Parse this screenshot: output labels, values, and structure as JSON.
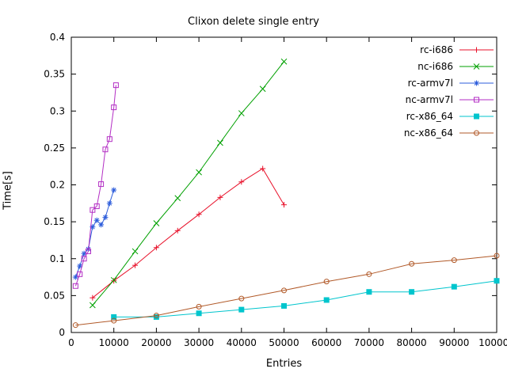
{
  "title": "Clixon delete single entry",
  "chart_data": {
    "type": "line",
    "title": "Clixon delete single entry",
    "xlabel": "Entries",
    "ylabel": "Time[s]",
    "xlim": [
      0,
      100000
    ],
    "ylim": [
      0,
      0.4
    ],
    "x_ticks": [
      0,
      10000,
      20000,
      30000,
      40000,
      50000,
      60000,
      70000,
      80000,
      90000,
      100000
    ],
    "y_ticks": [
      0,
      0.05,
      0.1,
      0.15,
      0.2,
      0.25,
      0.3,
      0.35,
      0.4
    ],
    "grid": false,
    "legend_position": "top-right-inside",
    "series": [
      {
        "name": "rc-i686",
        "color": "#e8112a",
        "marker": "plus",
        "points": [
          [
            5000,
            0.047
          ],
          [
            10000,
            0.07
          ],
          [
            15000,
            0.091
          ],
          [
            20000,
            0.115
          ],
          [
            25000,
            0.138
          ],
          [
            30000,
            0.16
          ],
          [
            35000,
            0.183
          ],
          [
            40000,
            0.204
          ],
          [
            45000,
            0.222
          ],
          [
            50000,
            0.173
          ]
        ]
      },
      {
        "name": "nc-i686",
        "color": "#00a000",
        "marker": "cross",
        "points": [
          [
            5000,
            0.037
          ],
          [
            10000,
            0.071
          ],
          [
            15000,
            0.11
          ],
          [
            20000,
            0.148
          ],
          [
            25000,
            0.182
          ],
          [
            30000,
            0.217
          ],
          [
            35000,
            0.257
          ],
          [
            40000,
            0.297
          ],
          [
            45000,
            0.33
          ],
          [
            50000,
            0.367
          ]
        ]
      },
      {
        "name": "rc-armv7l",
        "color": "#2d5ddb",
        "marker": "asterisk",
        "points": [
          [
            1000,
            0.075
          ],
          [
            2000,
            0.09
          ],
          [
            3000,
            0.107
          ],
          [
            4000,
            0.113
          ],
          [
            5000,
            0.143
          ],
          [
            6000,
            0.152
          ],
          [
            7000,
            0.146
          ],
          [
            8000,
            0.156
          ],
          [
            9000,
            0.175
          ],
          [
            10000,
            0.193
          ]
        ]
      },
      {
        "name": "nc-armv7l",
        "color": "#b32ec4",
        "marker": "square-open",
        "points": [
          [
            1000,
            0.063
          ],
          [
            2000,
            0.079
          ],
          [
            3000,
            0.1
          ],
          [
            4000,
            0.11
          ],
          [
            5000,
            0.166
          ],
          [
            6000,
            0.171
          ],
          [
            7000,
            0.201
          ],
          [
            8000,
            0.248
          ],
          [
            9000,
            0.262
          ],
          [
            10000,
            0.305
          ],
          [
            10500,
            0.335
          ]
        ]
      },
      {
        "name": "rc-x86_64",
        "color": "#00c5cd",
        "marker": "square-filled",
        "points": [
          [
            10000,
            0.021
          ],
          [
            20000,
            0.021
          ],
          [
            30000,
            0.026
          ],
          [
            40000,
            0.031
          ],
          [
            50000,
            0.036
          ],
          [
            60000,
            0.044
          ],
          [
            70000,
            0.055
          ],
          [
            80000,
            0.055
          ],
          [
            90000,
            0.062
          ],
          [
            100000,
            0.07
          ]
        ]
      },
      {
        "name": "nc-x86_64",
        "color": "#b15928",
        "marker": "circle-open",
        "points": [
          [
            1000,
            0.01
          ],
          [
            10000,
            0.016
          ],
          [
            20000,
            0.023
          ],
          [
            30000,
            0.035
          ],
          [
            40000,
            0.046
          ],
          [
            50000,
            0.057
          ],
          [
            60000,
            0.069
          ],
          [
            70000,
            0.079
          ],
          [
            80000,
            0.093
          ],
          [
            90000,
            0.098
          ],
          [
            100000,
            0.104
          ]
        ]
      }
    ]
  }
}
